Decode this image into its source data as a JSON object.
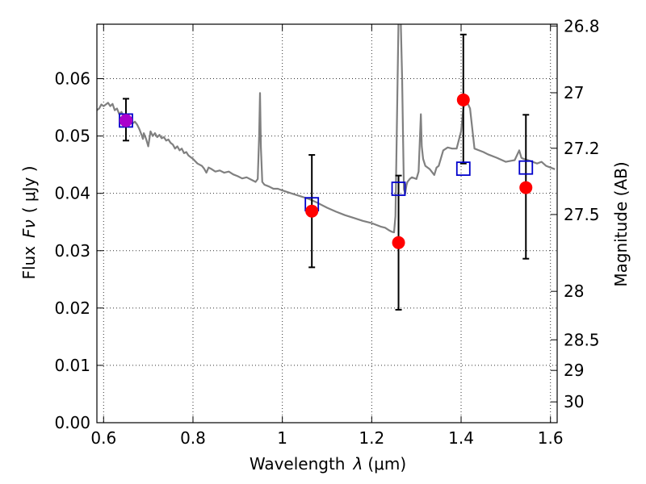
{
  "chart_data": {
    "type": "line",
    "title": "",
    "xlabel": "Wavelength",
    "xlabel_symbol": "λ",
    "xlabel_unit": "(μm)",
    "ylabel": "Flux",
    "ylabel_symbol": "Fν",
    "ylabel_unit": "( μJy )",
    "y2label": "Magnitude (AB)",
    "xlim": [
      0.585,
      1.615
    ],
    "ylim": [
      0.0,
      0.0695
    ],
    "x_ticks": [
      0.6,
      0.8,
      1.0,
      1.2,
      1.4,
      1.6
    ],
    "x_tick_labels": [
      "0.6",
      "0.8",
      "1",
      "1.2",
      "1.4",
      "1.6"
    ],
    "y_ticks": [
      0.0,
      0.01,
      0.02,
      0.03,
      0.04,
      0.05,
      0.06
    ],
    "y_tick_labels": [
      "0.00",
      "0.01",
      "0.02",
      "0.03",
      "0.04",
      "0.05",
      "0.06"
    ],
    "y2_ticks": [
      {
        "label": "26.8",
        "mag": 26.8
      },
      {
        "label": "27",
        "mag": 27.0
      },
      {
        "label": "27.2",
        "mag": 27.2
      },
      {
        "label": "27.5",
        "mag": 27.5
      },
      {
        "label": "28",
        "mag": 28.0
      },
      {
        "label": "28.5",
        "mag": 28.5
      },
      {
        "label": "29",
        "mag": 29.0
      },
      {
        "label": "30",
        "mag": 30.0
      }
    ],
    "grid": true,
    "series": [
      {
        "name": "model spectrum",
        "style": "line",
        "color": "#808080",
        "x": [
          0.585,
          0.59,
          0.595,
          0.6,
          0.605,
          0.61,
          0.615,
          0.62,
          0.625,
          0.63,
          0.635,
          0.64,
          0.645,
          0.65,
          0.655,
          0.66,
          0.665,
          0.67,
          0.675,
          0.68,
          0.685,
          0.688,
          0.69,
          0.695,
          0.7,
          0.705,
          0.71,
          0.715,
          0.72,
          0.725,
          0.73,
          0.735,
          0.74,
          0.745,
          0.75,
          0.755,
          0.76,
          0.765,
          0.77,
          0.775,
          0.78,
          0.785,
          0.79,
          0.8,
          0.81,
          0.82,
          0.825,
          0.83,
          0.835,
          0.84,
          0.85,
          0.86,
          0.87,
          0.88,
          0.89,
          0.9,
          0.91,
          0.92,
          0.93,
          0.94,
          0.945,
          0.948,
          0.95,
          0.952,
          0.955,
          0.96,
          0.97,
          0.98,
          0.99,
          1.0,
          1.02,
          1.04,
          1.06,
          1.08,
          1.1,
          1.12,
          1.14,
          1.16,
          1.18,
          1.2,
          1.22,
          1.23,
          1.24,
          1.245,
          1.25,
          1.253,
          1.256,
          1.26,
          1.262,
          1.265,
          1.268,
          1.27,
          1.272,
          1.275,
          1.278,
          1.28,
          1.285,
          1.29,
          1.3,
          1.305,
          1.31,
          1.312,
          1.315,
          1.32,
          1.33,
          1.34,
          1.345,
          1.35,
          1.36,
          1.37,
          1.38,
          1.39,
          1.4,
          1.405,
          1.41,
          1.42,
          1.43,
          1.44,
          1.45,
          1.46,
          1.48,
          1.5,
          1.52,
          1.53,
          1.535,
          1.54,
          1.55,
          1.56,
          1.57,
          1.58,
          1.59,
          1.6,
          1.61
        ],
        "y": [
          0.0545,
          0.0548,
          0.0555,
          0.0552,
          0.0555,
          0.0558,
          0.0552,
          0.0556,
          0.0545,
          0.0548,
          0.0538,
          0.0542,
          0.0535,
          0.053,
          0.0532,
          0.0525,
          0.0522,
          0.0525,
          0.052,
          0.0512,
          0.0502,
          0.0495,
          0.0505,
          0.0495,
          0.0482,
          0.0508,
          0.05,
          0.0505,
          0.0498,
          0.0502,
          0.0496,
          0.0498,
          0.0492,
          0.0494,
          0.0488,
          0.0485,
          0.0478,
          0.0482,
          0.0475,
          0.0478,
          0.047,
          0.0472,
          0.0466,
          0.046,
          0.0452,
          0.0448,
          0.0443,
          0.0436,
          0.0445,
          0.0443,
          0.0438,
          0.044,
          0.0436,
          0.0438,
          0.0433,
          0.043,
          0.0426,
          0.0428,
          0.0424,
          0.042,
          0.0425,
          0.05,
          0.0575,
          0.048,
          0.042,
          0.0415,
          0.0412,
          0.0408,
          0.0408,
          0.0405,
          0.04,
          0.0395,
          0.039,
          0.0383,
          0.0375,
          0.0368,
          0.0362,
          0.0357,
          0.0352,
          0.0348,
          0.0342,
          0.034,
          0.0335,
          0.0333,
          0.0332,
          0.036,
          0.05,
          0.07,
          0.07,
          0.07,
          0.06,
          0.05,
          0.0407,
          0.04,
          0.0415,
          0.042,
          0.0425,
          0.0428,
          0.0425,
          0.0438,
          0.0538,
          0.0482,
          0.046,
          0.0448,
          0.0442,
          0.0432,
          0.0445,
          0.0448,
          0.0475,
          0.048,
          0.0478,
          0.0478,
          0.0508,
          0.0548,
          0.0565,
          0.0548,
          0.0478,
          0.0475,
          0.0472,
          0.0468,
          0.0462,
          0.0455,
          0.0458,
          0.0475,
          0.0462,
          0.046,
          0.0458,
          0.0455,
          0.0452,
          0.0455,
          0.0448,
          0.0445,
          0.0442
        ]
      },
      {
        "name": "observed photometry",
        "style": "points-with-errorbars",
        "color": "#ff0000",
        "x": [
          0.65,
          1.066,
          1.26,
          1.405,
          1.545
        ],
        "y": [
          0.0527,
          0.0369,
          0.0314,
          0.0563,
          0.041
        ],
        "yerr_low": [
          0.0035,
          0.0098,
          0.0117,
          0.0111,
          0.0124
        ],
        "yerr_high": [
          0.0038,
          0.0098,
          0.0117,
          0.0114,
          0.0127
        ]
      },
      {
        "name": "model photometry",
        "style": "open-squares",
        "color": "#0000cc",
        "x": [
          0.65,
          1.066,
          1.26,
          1.405,
          1.545
        ],
        "y": [
          0.0527,
          0.0381,
          0.0408,
          0.0443,
          0.0445
        ]
      }
    ],
    "annotations": [
      {
        "text": "purple overlap marker",
        "x": 0.65,
        "y": 0.0527,
        "color": "#aa00cc"
      }
    ]
  }
}
